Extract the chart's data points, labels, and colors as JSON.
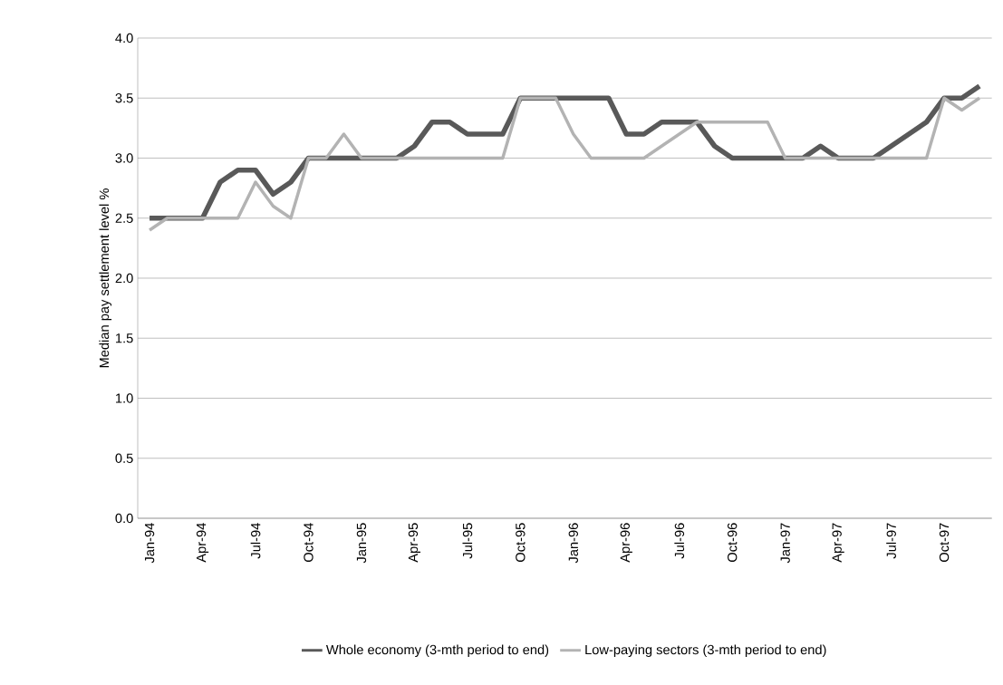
{
  "chart_data": {
    "type": "line",
    "ylabel": "Median pay settlement level %",
    "categories": [
      "Jan-94",
      null,
      null,
      "Apr-94",
      null,
      null,
      "Jul-94",
      null,
      null,
      "Oct-94",
      null,
      null,
      "Jan-95",
      null,
      null,
      "Apr-95",
      null,
      null,
      "Jul-95",
      null,
      null,
      "Oct-95",
      null,
      null,
      "Jan-96",
      null,
      null,
      "Apr-96",
      null,
      null,
      "Jul-96",
      null,
      null,
      "Oct-96",
      null,
      null,
      "Jan-97",
      null,
      null,
      "Apr-97",
      null,
      null,
      "Jul-97",
      null,
      null,
      "Oct-97",
      null,
      null
    ],
    "series": [
      {
        "name": "Whole economy (3-mth period to end)",
        "color": "#595959",
        "values": [
          2.5,
          2.5,
          2.5,
          2.5,
          2.8,
          2.9,
          2.9,
          2.7,
          2.8,
          3.0,
          3.0,
          3.0,
          3.0,
          3.0,
          3.0,
          3.1,
          3.3,
          3.3,
          3.2,
          3.2,
          3.2,
          3.5,
          3.5,
          3.5,
          3.5,
          3.5,
          3.5,
          3.2,
          3.2,
          3.3,
          3.3,
          3.3,
          3.1,
          3.0,
          3.0,
          3.0,
          3.0,
          3.0,
          3.1,
          3.0,
          3.0,
          3.0,
          3.1,
          3.2,
          3.3,
          3.5,
          3.5,
          3.6
        ]
      },
      {
        "name": "Low-paying sectors (3-mth period to end)",
        "color": "#b3b3b3",
        "values": [
          2.4,
          2.5,
          2.5,
          2.5,
          2.5,
          2.5,
          2.8,
          2.6,
          2.5,
          3.0,
          3.0,
          3.2,
          3.0,
          3.0,
          3.0,
          3.0,
          3.0,
          3.0,
          3.0,
          3.0,
          3.0,
          3.5,
          3.5,
          3.5,
          3.2,
          3.0,
          3.0,
          3.0,
          3.0,
          3.1,
          3.2,
          3.3,
          3.3,
          3.3,
          3.3,
          3.3,
          3.0,
          3.0,
          3.0,
          3.0,
          3.0,
          3.0,
          3.0,
          3.0,
          3.0,
          3.5,
          3.4,
          3.5
        ]
      }
    ],
    "ylim": [
      0,
      4.0
    ],
    "yticks": [
      {
        "value": 0,
        "label": "0.0"
      },
      {
        "value": 0.5,
        "label": "0.5"
      },
      {
        "value": 1.0,
        "label": "1.0"
      },
      {
        "value": 1.5,
        "label": "1.5"
      },
      {
        "value": 2.0,
        "label": "2.0"
      },
      {
        "value": 2.5,
        "label": "2.5"
      },
      {
        "value": 3.0,
        "label": "3.0"
      },
      {
        "value": 3.5,
        "label": "3.5"
      },
      {
        "value": 4.0,
        "label": "4.0"
      }
    ],
    "grid": "y",
    "legend": "bottom",
    "marker": "none",
    "line_style": "solid"
  }
}
